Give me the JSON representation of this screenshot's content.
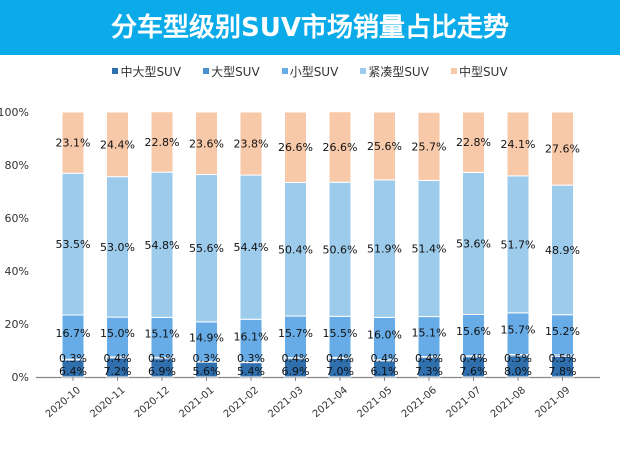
{
  "chart_data": {
    "type": "bar",
    "stacked": true,
    "title": "分车型级别SUV市场销量占比走势",
    "categories": [
      "2020-10",
      "2020-11",
      "2020-12",
      "2021-01",
      "2021-02",
      "2021-03",
      "2021-04",
      "2021-05",
      "2021-06",
      "2021-07",
      "2021-08",
      "2021-09"
    ],
    "series": [
      {
        "name": "中大型SUV",
        "color": "#2f6fae",
        "values": [
          6.4,
          7.2,
          6.9,
          5.6,
          5.4,
          6.9,
          7.0,
          6.1,
          7.3,
          7.6,
          8.0,
          7.8
        ]
      },
      {
        "name": "大型SUV",
        "color": "#4a8fd0",
        "values": [
          0.3,
          0.4,
          0.5,
          0.3,
          0.3,
          0.4,
          0.4,
          0.4,
          0.4,
          0.4,
          0.5,
          0.5
        ]
      },
      {
        "name": "小型SUV",
        "color": "#67ace6",
        "values": [
          16.7,
          15.0,
          15.1,
          14.9,
          16.1,
          15.7,
          15.5,
          16.0,
          15.1,
          15.6,
          15.7,
          15.2
        ]
      },
      {
        "name": "紧凑型SUV",
        "color": "#9dcbeb",
        "values": [
          53.5,
          53.0,
          54.8,
          55.6,
          54.4,
          50.4,
          50.6,
          51.9,
          51.4,
          53.6,
          51.7,
          48.9
        ]
      },
      {
        "name": "中型SUV",
        "color": "#f8c9a9",
        "values": [
          23.1,
          24.4,
          22.8,
          23.6,
          23.8,
          26.6,
          26.6,
          25.6,
          25.7,
          22.8,
          24.1,
          27.6
        ]
      }
    ],
    "yticks": [
      "0%",
      "20%",
      "40%",
      "60%",
      "80%",
      "100%"
    ],
    "ylim": [
      0,
      100
    ],
    "legend": "top",
    "grid": false
  }
}
